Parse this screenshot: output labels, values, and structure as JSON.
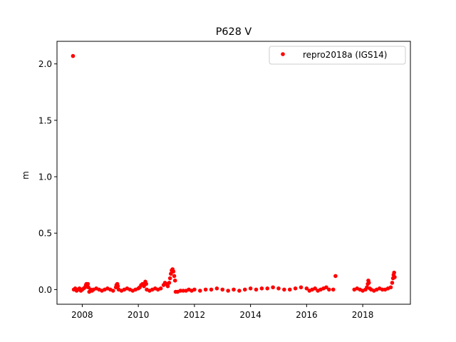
{
  "chart_data": {
    "type": "scatter",
    "title": "P628 V",
    "xlabel": "",
    "ylabel": "m",
    "xlim": [
      2007.1,
      2019.7
    ],
    "ylim": [
      -0.13,
      2.2
    ],
    "xticks": [
      2008,
      2010,
      2012,
      2014,
      2016,
      2018
    ],
    "xtick_labels": [
      "2008",
      "2010",
      "2012",
      "2014",
      "2016",
      "2018"
    ],
    "yticks": [
      0.0,
      0.5,
      1.0,
      1.5,
      2.0
    ],
    "ytick_labels": [
      "0.0",
      "0.5",
      "1.0",
      "1.5",
      "2.0"
    ],
    "grid": false,
    "legend_position": "top-right",
    "series": [
      {
        "name": "repro2018a (IGS14)",
        "color": "#ff0000",
        "marker": "point",
        "points": [
          [
            2007.67,
            2.07
          ],
          [
            2007.7,
            0.0
          ],
          [
            2007.75,
            0.01
          ],
          [
            2007.8,
            -0.01
          ],
          [
            2007.85,
            0.0
          ],
          [
            2007.9,
            0.01
          ],
          [
            2007.95,
            -0.01
          ],
          [
            2008.0,
            0.0
          ],
          [
            2008.05,
            0.01
          ],
          [
            2008.1,
            0.02
          ],
          [
            2008.13,
            0.04
          ],
          [
            2008.15,
            0.05
          ],
          [
            2008.17,
            0.03
          ],
          [
            2008.2,
            0.05
          ],
          [
            2008.22,
            0.02
          ],
          [
            2008.25,
            -0.02
          ],
          [
            2008.3,
            0.0
          ],
          [
            2008.35,
            -0.01
          ],
          [
            2008.4,
            0.0
          ],
          [
            2008.5,
            0.01
          ],
          [
            2008.6,
            0.0
          ],
          [
            2008.7,
            -0.01
          ],
          [
            2008.8,
            0.0
          ],
          [
            2008.9,
            0.01
          ],
          [
            2009.0,
            0.0
          ],
          [
            2009.1,
            -0.01
          ],
          [
            2009.2,
            0.02
          ],
          [
            2009.22,
            0.04
          ],
          [
            2009.25,
            0.05
          ],
          [
            2009.27,
            0.03
          ],
          [
            2009.3,
            0.0
          ],
          [
            2009.4,
            -0.01
          ],
          [
            2009.5,
            0.0
          ],
          [
            2009.6,
            0.01
          ],
          [
            2009.7,
            0.0
          ],
          [
            2009.8,
            -0.01
          ],
          [
            2009.9,
            0.0
          ],
          [
            2010.0,
            0.01
          ],
          [
            2010.05,
            0.02
          ],
          [
            2010.1,
            0.04
          ],
          [
            2010.15,
            0.05
          ],
          [
            2010.2,
            0.03
          ],
          [
            2010.25,
            0.07
          ],
          [
            2010.28,
            0.05
          ],
          [
            2010.3,
            0.0
          ],
          [
            2010.4,
            -0.01
          ],
          [
            2010.5,
            0.0
          ],
          [
            2010.6,
            0.01
          ],
          [
            2010.7,
            0.0
          ],
          [
            2010.8,
            0.01
          ],
          [
            2010.9,
            0.04
          ],
          [
            2010.95,
            0.06
          ],
          [
            2011.0,
            0.05
          ],
          [
            2011.05,
            0.03
          ],
          [
            2011.1,
            0.06
          ],
          [
            2011.13,
            0.1
          ],
          [
            2011.16,
            0.14
          ],
          [
            2011.19,
            0.17
          ],
          [
            2011.22,
            0.18
          ],
          [
            2011.25,
            0.16
          ],
          [
            2011.28,
            0.12
          ],
          [
            2011.31,
            0.08
          ],
          [
            2011.33,
            -0.02
          ],
          [
            2011.4,
            -0.02
          ],
          [
            2011.5,
            -0.01
          ],
          [
            2011.6,
            -0.01
          ],
          [
            2011.7,
            -0.01
          ],
          [
            2011.8,
            0.0
          ],
          [
            2011.9,
            -0.01
          ],
          [
            2012.0,
            0.0
          ],
          [
            2012.2,
            -0.01
          ],
          [
            2012.4,
            0.0
          ],
          [
            2012.6,
            0.0
          ],
          [
            2012.8,
            0.01
          ],
          [
            2013.0,
            0.0
          ],
          [
            2013.2,
            -0.01
          ],
          [
            2013.4,
            0.0
          ],
          [
            2013.6,
            -0.01
          ],
          [
            2013.8,
            0.0
          ],
          [
            2014.0,
            0.01
          ],
          [
            2014.2,
            0.0
          ],
          [
            2014.4,
            0.01
          ],
          [
            2014.6,
            0.01
          ],
          [
            2014.8,
            0.02
          ],
          [
            2015.0,
            0.01
          ],
          [
            2015.2,
            0.0
          ],
          [
            2015.4,
            0.0
          ],
          [
            2015.6,
            0.01
          ],
          [
            2015.8,
            0.02
          ],
          [
            2016.0,
            0.01
          ],
          [
            2016.1,
            -0.01
          ],
          [
            2016.2,
            0.0
          ],
          [
            2016.3,
            0.01
          ],
          [
            2016.4,
            -0.01
          ],
          [
            2016.5,
            0.0
          ],
          [
            2016.6,
            0.01
          ],
          [
            2016.7,
            0.02
          ],
          [
            2016.8,
            0.0
          ],
          [
            2016.95,
            0.0
          ],
          [
            2017.03,
            0.12
          ],
          [
            2017.7,
            0.0
          ],
          [
            2017.8,
            0.01
          ],
          [
            2017.9,
            0.0
          ],
          [
            2018.0,
            -0.01
          ],
          [
            2018.1,
            0.0
          ],
          [
            2018.15,
            0.02
          ],
          [
            2018.18,
            0.05
          ],
          [
            2018.2,
            0.08
          ],
          [
            2018.22,
            0.06
          ],
          [
            2018.25,
            0.01
          ],
          [
            2018.3,
            0.0
          ],
          [
            2018.4,
            -0.01
          ],
          [
            2018.5,
            0.0
          ],
          [
            2018.6,
            0.01
          ],
          [
            2018.7,
            0.0
          ],
          [
            2018.8,
            0.0
          ],
          [
            2018.9,
            0.01
          ],
          [
            2019.0,
            0.02
          ],
          [
            2019.05,
            0.06
          ],
          [
            2019.08,
            0.1
          ],
          [
            2019.1,
            0.13
          ],
          [
            2019.12,
            0.15
          ],
          [
            2019.14,
            0.11
          ]
        ]
      }
    ]
  }
}
